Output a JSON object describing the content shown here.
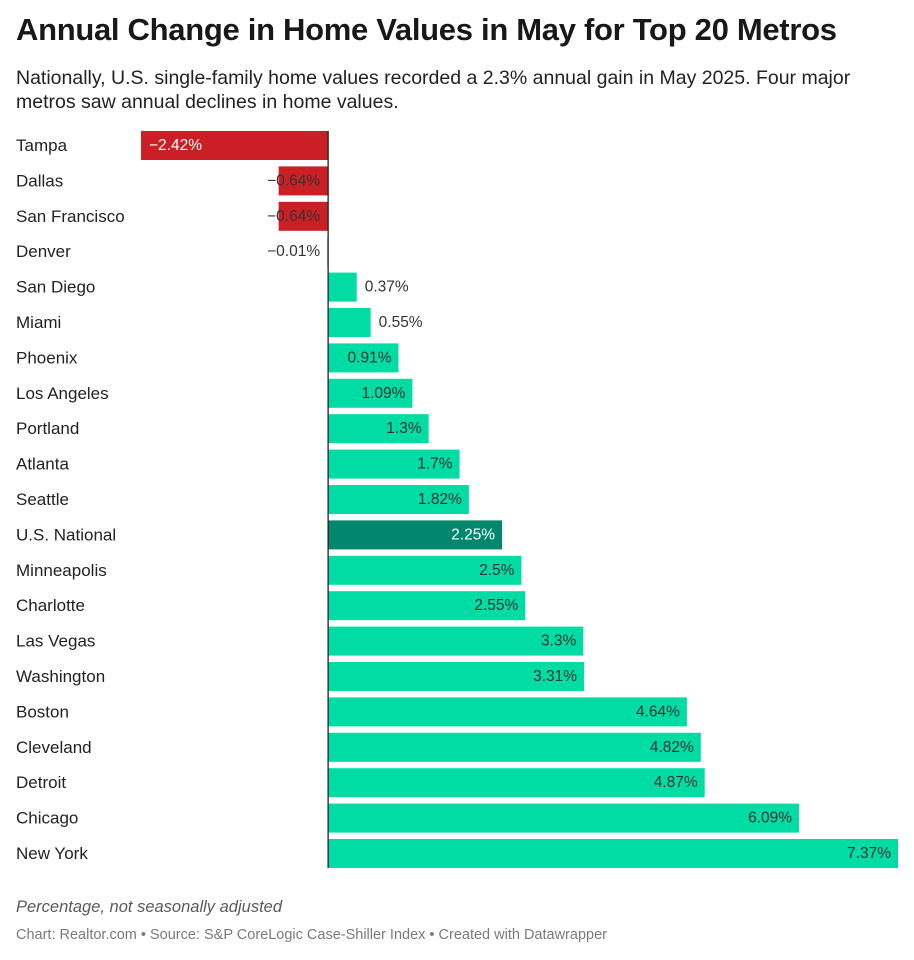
{
  "title": "Annual Change in Home Values in May for Top 20 Metros",
  "subtitle": "Nationally, U.S. single-family home values recorded a 2.3% annual gain in May 2025. Four major metros saw annual declines in home values.",
  "note": "Percentage, not seasonally adjusted",
  "footer": "Chart: Realtor.com • Source: S&P CoreLogic Case-Shiller Index • Created with Datawrapper",
  "colors": {
    "negative": "#c91f25",
    "positive": "#00dca3",
    "highlight": "#00876d",
    "axis": "#222222",
    "label_dark": "#333333",
    "label_light": "#ffffff"
  },
  "chart_data": {
    "type": "bar",
    "orientation": "horizontal",
    "categories": [
      "Tampa",
      "Dallas",
      "San Francisco",
      "Denver",
      "San Diego",
      "Miami",
      "Phoenix",
      "Los Angeles",
      "Portland",
      "Atlanta",
      "Seattle",
      "U.S. National",
      "Minneapolis",
      "Charlotte",
      "Las Vegas",
      "Washington",
      "Boston",
      "Cleveland",
      "Detroit",
      "Chicago",
      "New York"
    ],
    "values": [
      -2.42,
      -0.64,
      -0.64,
      -0.01,
      0.37,
      0.55,
      0.91,
      1.09,
      1.3,
      1.7,
      1.82,
      2.25,
      2.5,
      2.55,
      3.3,
      3.31,
      4.64,
      4.82,
      4.87,
      6.09,
      7.37
    ],
    "value_labels": [
      "−2.42%",
      "−0.64%",
      "−0.64%",
      "−0.01%",
      "0.37%",
      "0.55%",
      "0.91%",
      "1.09%",
      "1.3%",
      "1.7%",
      "1.82%",
      "2.25%",
      "2.5%",
      "2.55%",
      "3.3%",
      "3.31%",
      "4.64%",
      "4.82%",
      "4.87%",
      "6.09%",
      "7.37%"
    ],
    "highlight": "U.S. National",
    "xlim": [
      -2.42,
      7.37
    ],
    "units": "%"
  }
}
